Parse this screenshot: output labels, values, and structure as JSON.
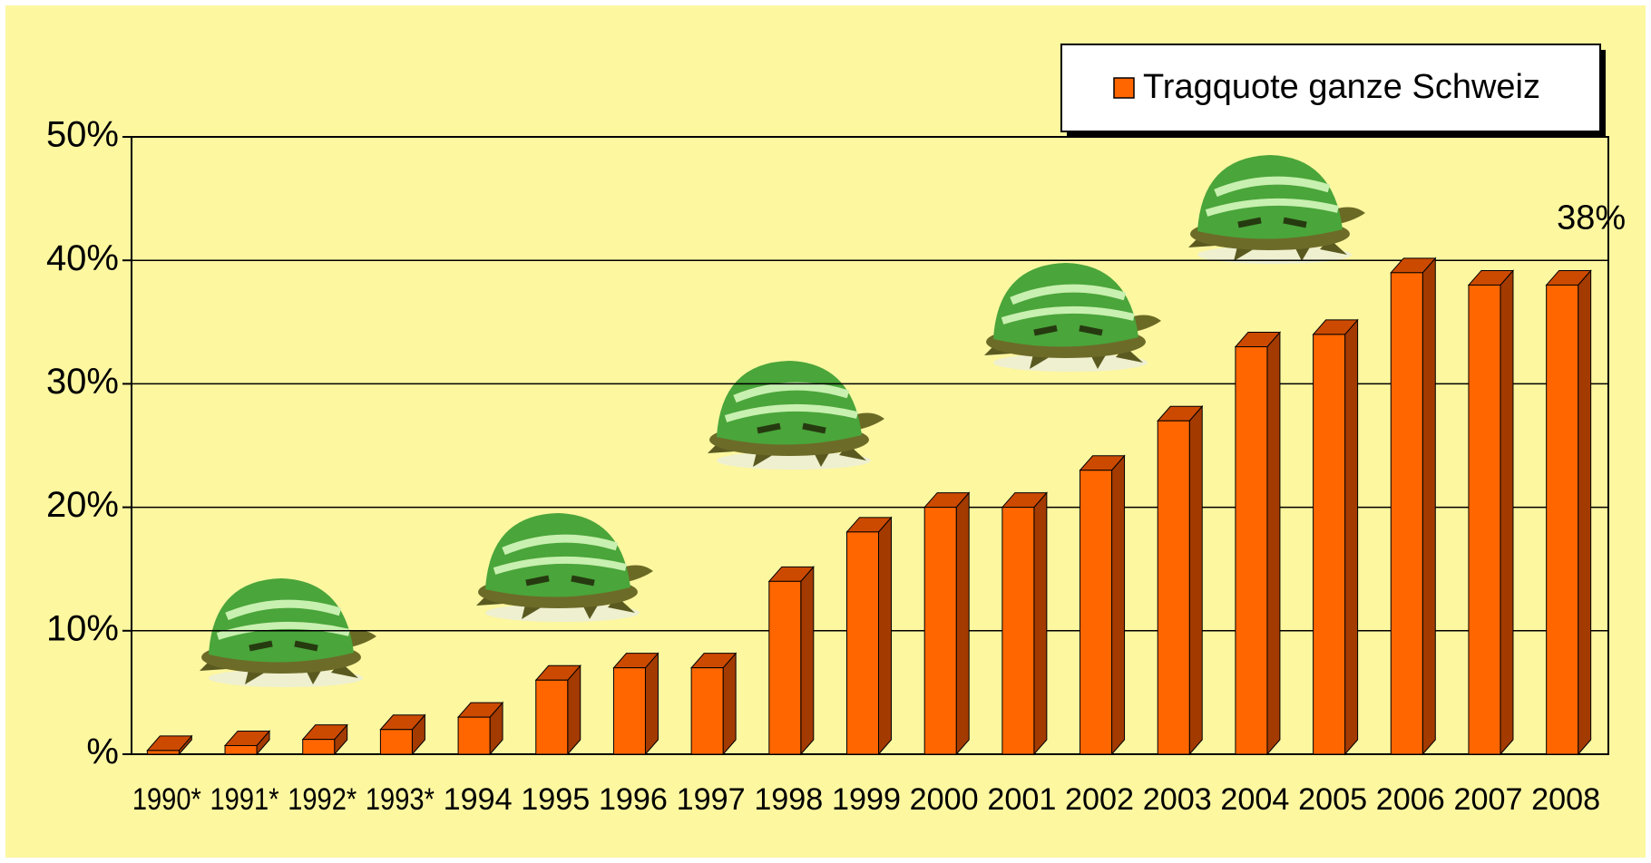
{
  "chart_data": {
    "type": "bar3d",
    "series": [
      {
        "name": "Tragquote ganze Schweiz",
        "color": "#ff6600",
        "values": [
          0.3,
          0.7,
          1.2,
          2,
          3,
          6,
          7,
          7,
          14,
          18,
          20,
          20,
          23,
          27,
          33,
          34,
          39,
          38,
          38
        ],
        "value_labels": [
          null,
          null,
          null,
          null,
          null,
          null,
          null,
          null,
          null,
          null,
          null,
          null,
          null,
          null,
          null,
          null,
          null,
          null,
          "38%"
        ]
      }
    ],
    "categories": [
      "1990*",
      "1991*",
      "1992*",
      "1993*",
      "1994",
      "1995",
      "1996",
      "1997",
      "1998",
      "1999",
      "2000",
      "2001",
      "2002",
      "2003",
      "2004",
      "2005",
      "2006",
      "2007",
      "2008"
    ],
    "ylim": [
      0,
      50
    ],
    "yticks": [
      {
        "value": 0,
        "label": "%"
      },
      {
        "value": 10,
        "label": "10%"
      },
      {
        "value": 20,
        "label": "20%"
      },
      {
        "value": 30,
        "label": "30%"
      },
      {
        "value": 40,
        "label": "40%"
      },
      {
        "value": 50,
        "label": "50%"
      }
    ],
    "grid": true,
    "legend": "top-right"
  }
}
